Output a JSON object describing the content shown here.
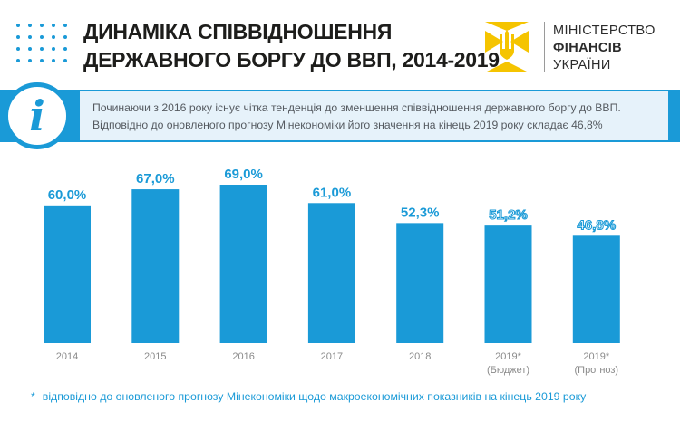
{
  "header": {
    "title_line1": "ДИНАМІКА СПІВВІДНОШЕННЯ",
    "title_line2": "ДЕРЖАВНОГО БОРГУ ДО ВВП, 2014-2019"
  },
  "logo": {
    "line1": "МІНІСТЕРСТВО",
    "line2": "ФІНАНСІВ",
    "line3": "УКРАЇНИ",
    "icon": "trident-emblem-icon"
  },
  "info": {
    "icon": "info-icon",
    "line1": "Починаючи з 2016 року існує чітка тенденція до зменшення співвідношення державного боргу до ВВП.",
    "line2": "Відповідно до оновленого прогнозу Мінекономіки його значення  на кінець 2019 року складає 46,8%"
  },
  "footnote": {
    "star": "*",
    "text": "відповідно до оновленого прогнозу Мінекономіки щодо макроекономічних показників на кінець 2019 року"
  },
  "colors": {
    "accent": "#1a9ad7",
    "panel": "#e6f2fa",
    "title": "#1d1d1b",
    "tick": "#8a8a8a"
  },
  "chart_data": {
    "type": "bar",
    "categories": [
      "2014",
      "2015",
      "2016",
      "2017",
      "2018",
      "2019*",
      "2019*"
    ],
    "category_sublabels": [
      "",
      "",
      "",
      "",
      "",
      "(Бюджет)",
      "(Прогноз)"
    ],
    "values": [
      60.0,
      67.0,
      69.0,
      61.0,
      52.3,
      51.2,
      46.8
    ],
    "data_labels": [
      "60,0%",
      "67,0%",
      "69,0%",
      "61,0%",
      "52,3%",
      "51,2%",
      "46,8%"
    ],
    "label_style": [
      "solid",
      "solid",
      "solid",
      "solid",
      "solid",
      "outline",
      "outline"
    ],
    "ylim": [
      0,
      69
    ],
    "grid": false,
    "legend": "none",
    "title": "",
    "xlabel": "",
    "ylabel": ""
  }
}
